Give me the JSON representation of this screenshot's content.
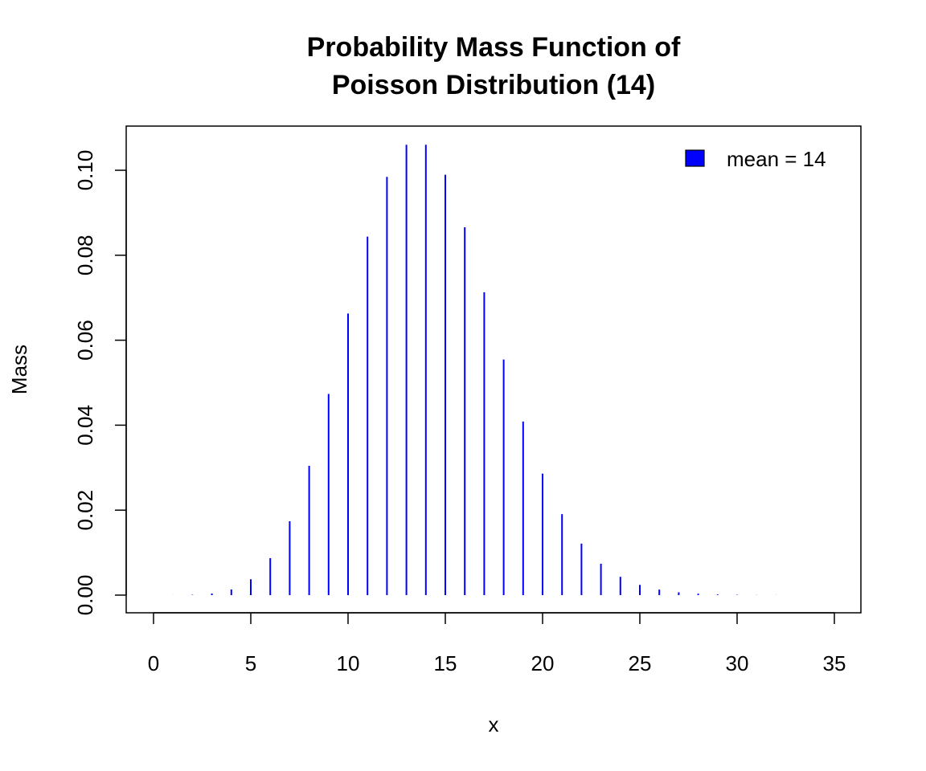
{
  "chart_data": {
    "type": "bar",
    "title": [
      "Probability Mass Function of",
      "Poisson Distribution (14)"
    ],
    "xlabel": "x",
    "ylabel": "Mass",
    "xlim": [
      -1.4,
      36.4
    ],
    "ylim": [
      -0.0042,
      0.1103
    ],
    "x_ticks": [
      0,
      5,
      10,
      15,
      20,
      25,
      30,
      35
    ],
    "x_tick_labels": [
      "0",
      "5",
      "10",
      "15",
      "20",
      "25",
      "30",
      "35"
    ],
    "y_ticks": [
      0,
      0.02,
      0.04,
      0.06,
      0.08,
      0.1
    ],
    "y_tick_labels": [
      "0.00",
      "0.02",
      "0.04",
      "0.06",
      "0.08",
      "0.10"
    ],
    "grid": false,
    "legend": {
      "position": "top-right",
      "entries": [
        {
          "label": "mean = 14",
          "color": "#0000ff"
        }
      ]
    },
    "series": [
      {
        "name": "mean = 14",
        "color": "#0000ff",
        "x": [
          0,
          1,
          2,
          3,
          4,
          5,
          6,
          7,
          8,
          9,
          10,
          11,
          12,
          13,
          14,
          15,
          16,
          17,
          18,
          19,
          20,
          21,
          22,
          23,
          24,
          25,
          26,
          27,
          28,
          29,
          30,
          31,
          32,
          33,
          34,
          35
        ],
        "values": [
          8e-07,
          1.16e-05,
          8.15e-05,
          0.00038,
          0.00133,
          0.00373,
          0.0087,
          0.01739,
          0.03044,
          0.04735,
          0.06629,
          0.08437,
          0.09843,
          0.106,
          0.106,
          0.09893,
          0.08657,
          0.07129,
          0.05545,
          0.04086,
          0.0286,
          0.01907,
          0.01213,
          0.00739,
          0.00431,
          0.00241,
          0.0013,
          0.00067,
          0.00034,
          0.00016,
          7.6e-05,
          3.4e-05,
          1.5e-05,
          6.4e-06,
          2.6e-06,
          1e-06
        ]
      }
    ]
  }
}
